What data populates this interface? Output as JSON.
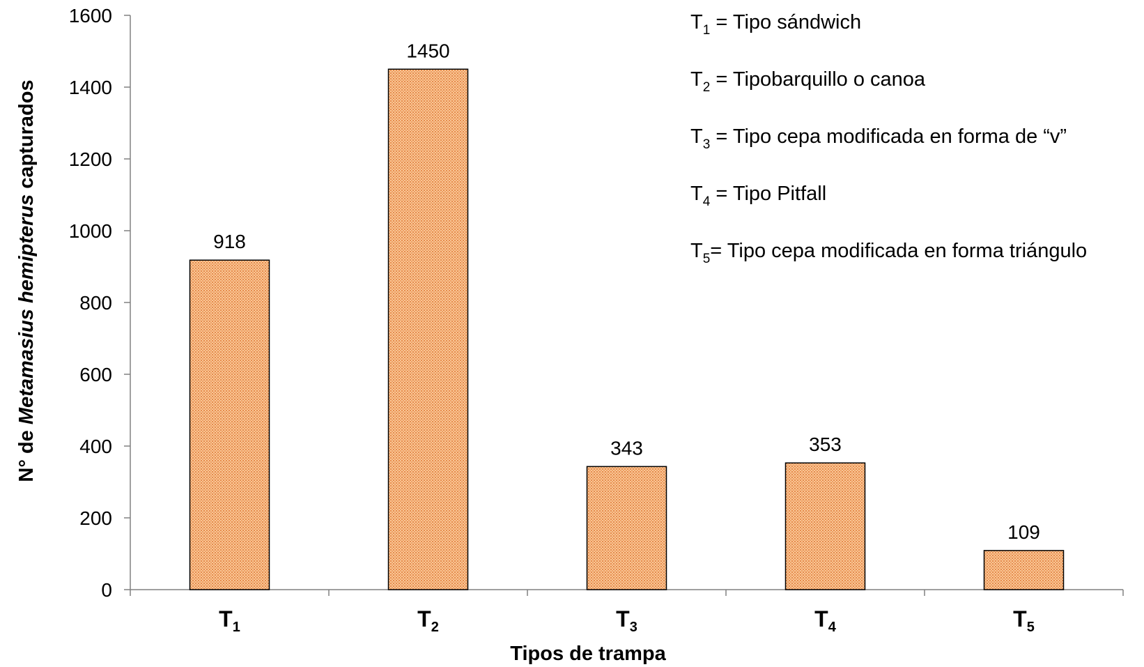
{
  "chart_data": {
    "type": "bar",
    "categories": [
      {
        "main": "T",
        "sub": "1"
      },
      {
        "main": "T",
        "sub": "2"
      },
      {
        "main": "T",
        "sub": "3"
      },
      {
        "main": "T",
        "sub": "4"
      },
      {
        "main": "T",
        "sub": "5"
      }
    ],
    "values": [
      918,
      1450,
      343,
      353,
      109
    ],
    "data_labels": [
      "918",
      "1450",
      "343",
      "353",
      "109"
    ],
    "xlabel": "Tipos de trampa",
    "ylabel": {
      "prefix": "N° de ",
      "italic": "Metamasius hemipterus",
      "suffix": " capturados"
    },
    "ylim": [
      0,
      1600
    ],
    "yticks": [
      0,
      200,
      400,
      600,
      800,
      1000,
      1200,
      1400,
      1600
    ],
    "legend_placement": "top-right",
    "legend": [
      {
        "main": "T",
        "sub": "1",
        "text": " = Tipo sándwich"
      },
      {
        "main": "T",
        "sub": "2",
        "text": " = Tipobarquillo o canoa"
      },
      {
        "main": "T",
        "sub": "3",
        "text": " = Tipo cepa modificada en forma de “v”"
      },
      {
        "main": "T",
        "sub": "4",
        "text": " = Tipo Pitfall"
      },
      {
        "main": "T",
        "sub": "5",
        "text": "= Tipo cepa modificada en forma triángulo"
      }
    ],
    "grid": false,
    "bar_color": "#f6c08a",
    "bar_pattern_color": "#e07a3a",
    "bar_outline_color": "#000000",
    "axis_color": "#808080"
  }
}
